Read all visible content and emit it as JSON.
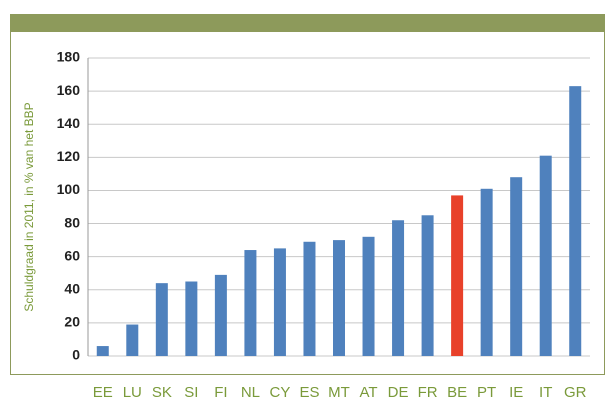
{
  "chart_data": {
    "type": "bar",
    "ylabel": "Schuldgraad in 2011, in % van het BBP",
    "categories": [
      "EE",
      "LU",
      "SK",
      "SI",
      "FI",
      "NL",
      "CY",
      "ES",
      "MT",
      "AT",
      "DE",
      "FR",
      "BE",
      "PT",
      "IE",
      "IT",
      "GR"
    ],
    "values": [
      6,
      19,
      44,
      45,
      49,
      64,
      65,
      69,
      70,
      72,
      82,
      85,
      97,
      101,
      108,
      121,
      163
    ],
    "colors": [
      "#4f81bd",
      "#4f81bd",
      "#4f81bd",
      "#4f81bd",
      "#4f81bd",
      "#4f81bd",
      "#4f81bd",
      "#4f81bd",
      "#4f81bd",
      "#4f81bd",
      "#4f81bd",
      "#4f81bd",
      "#e8412a",
      "#4f81bd",
      "#4f81bd",
      "#4f81bd",
      "#4f81bd"
    ],
    "ylim": [
      0,
      180
    ],
    "yticks": [
      0,
      20,
      40,
      60,
      80,
      100,
      120,
      140,
      160,
      180
    ],
    "grid": true
  }
}
